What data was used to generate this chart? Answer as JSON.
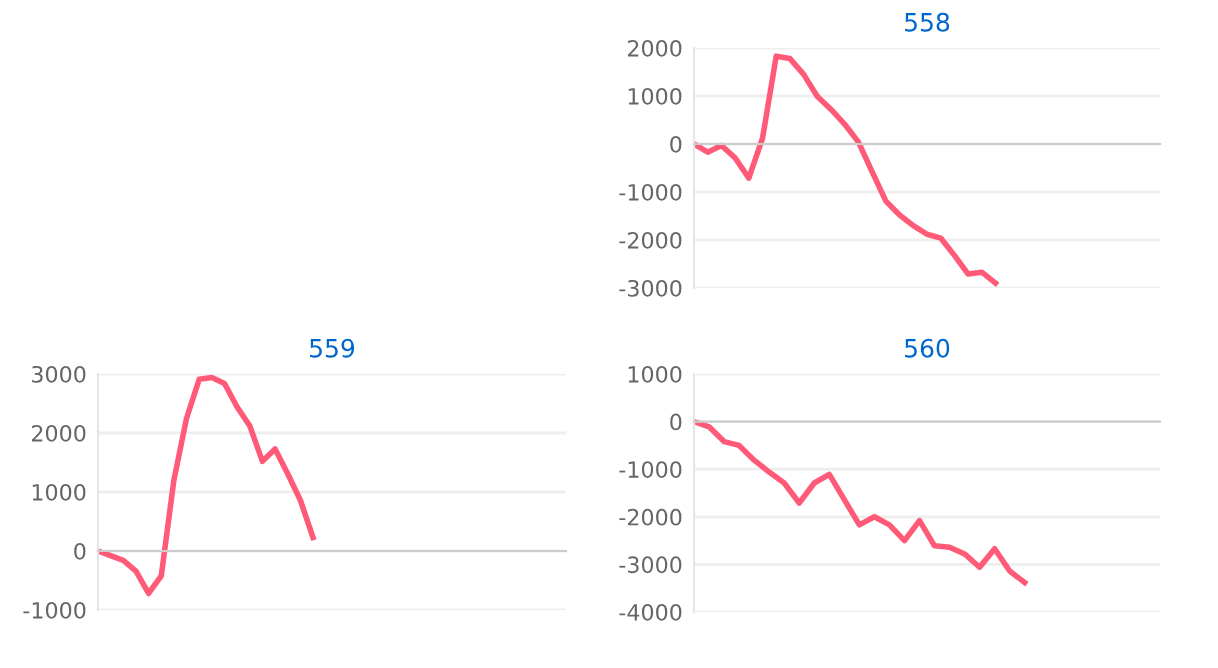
{
  "chart_data": [
    {
      "type": "line",
      "title": "558",
      "categories": [
        null,
        null,
        null,
        null,
        null,
        null,
        null,
        null,
        null,
        null,
        null,
        null,
        null,
        null,
        null,
        null,
        null,
        null,
        null,
        null,
        null,
        null,
        null,
        null,
        null,
        null,
        null,
        null,
        null,
        null,
        null,
        null,
        null,
        null,
        null
      ],
      "series": [
        {
          "color": "#ff5a78",
          "values": [
            0,
            -170,
            -30,
            -290,
            -710,
            120,
            1830,
            1780,
            1450,
            990,
            720,
            410,
            40,
            -580,
            -1190,
            -1480,
            -1700,
            -1880,
            -1960,
            -2320,
            -2710,
            -2670,
            -2900,
            null,
            null,
            null,
            null,
            null,
            null,
            null,
            null,
            null,
            null,
            null,
            null
          ]
        }
      ],
      "ylim": [
        -3000,
        2000
      ],
      "yticks": [
        -3000,
        -2000,
        -1000,
        0,
        1000,
        2000
      ],
      "grid": "y"
    },
    {
      "type": "line",
      "title": "559",
      "categories": [
        null,
        null,
        null,
        null,
        null,
        null,
        null,
        null,
        null,
        null,
        null,
        null,
        null,
        null,
        null,
        null,
        null,
        null,
        null,
        null,
        null,
        null,
        null,
        null,
        null,
        null,
        null,
        null,
        null,
        null,
        null,
        null,
        null,
        null,
        null,
        null,
        null,
        null
      ],
      "series": [
        {
          "color": "#ff5a78",
          "values": [
            0,
            -80,
            -160,
            -340,
            -720,
            -420,
            1200,
            2250,
            2910,
            2940,
            2840,
            2440,
            2120,
            1520,
            1730,
            1310,
            860,
            230,
            null,
            null,
            null,
            null,
            null,
            null,
            null,
            null,
            null,
            null,
            null,
            null,
            null,
            null,
            null,
            null,
            null,
            null,
            null,
            null
          ]
        }
      ],
      "ylim": [
        -1000,
        3000
      ],
      "yticks": [
        -1000,
        0,
        1000,
        2000,
        3000
      ],
      "grid": "y"
    },
    {
      "type": "line",
      "title": "560",
      "categories": [
        null,
        null,
        null,
        null,
        null,
        null,
        null,
        null,
        null,
        null,
        null,
        null,
        null,
        null,
        null,
        null,
        null,
        null,
        null,
        null,
        null,
        null,
        null,
        null,
        null,
        null,
        null,
        null,
        null,
        null,
        null,
        null
      ],
      "series": [
        {
          "color": "#ff5a78",
          "values": [
            0,
            -110,
            -420,
            -500,
            -810,
            -1060,
            -1290,
            -1710,
            -1290,
            -1110,
            -1640,
            -2170,
            -2000,
            -2170,
            -2500,
            -2080,
            -2610,
            -2640,
            -2780,
            -3060,
            -2670,
            -3140,
            -3380,
            null,
            null,
            null,
            null,
            null,
            null,
            null,
            null,
            null
          ]
        }
      ],
      "ylim": [
        -4000,
        1000
      ],
      "yticks": [
        -4000,
        -3000,
        -2000,
        -1000,
        0,
        1000
      ],
      "grid": "y"
    }
  ]
}
